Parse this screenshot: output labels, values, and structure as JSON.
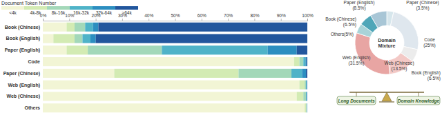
{
  "chart_data": [
    {
      "type": "bar",
      "orientation": "horizontal",
      "stacked": true,
      "legend": "top-left",
      "grid": false,
      "legend_title": "Document Token Number",
      "categories": [
        "Book (Chinese)",
        "Book (English)",
        "Paper (English)",
        "Code",
        "Paper (Chinese)",
        "Web (English)",
        "Web (Chinese)",
        "Others"
      ],
      "series": [
        {
          "name": "<4k",
          "color": "#f2f5d5",
          "values": [
            9,
            4,
            9,
            95,
            27,
            97,
            96,
            99
          ]
        },
        {
          "name": "4k-8k",
          "color": "#d3ebb3",
          "values": [
            3,
            8,
            8,
            2,
            47,
            2,
            2.5,
            0.6
          ]
        },
        {
          "name": "8k-16k",
          "color": "#a3d8b9",
          "values": [
            4,
            3,
            28,
            1.5,
            20,
            0.5,
            1,
            0.2
          ]
        },
        {
          "name": "16k-32k",
          "color": "#4fb3c8",
          "values": [
            3,
            3,
            40,
            0.8,
            4,
            0.3,
            0.3,
            0.1
          ]
        },
        {
          "name": "32k-64k",
          "color": "#2c8ec0",
          "values": [
            2,
            2,
            11,
            0.4,
            1.5,
            0.1,
            0.1,
            0.05
          ]
        },
        {
          "name": ">64k",
          "color": "#22569d",
          "values": [
            79,
            80,
            4,
            0.3,
            0.5,
            0.1,
            0.1,
            0.05
          ]
        }
      ],
      "xlim": [
        0,
        100
      ],
      "xticks": [
        {
          "value": 0,
          "label": "0%"
        },
        {
          "value": 10,
          "label": "10%"
        },
        {
          "value": 20,
          "label": "20%"
        },
        {
          "value": 30,
          "label": "30%"
        },
        {
          "value": 40,
          "label": "40%"
        },
        {
          "value": 50,
          "label": "50%"
        },
        {
          "value": 60,
          "label": "60%"
        },
        {
          "value": 70,
          "label": "70%"
        },
        {
          "value": 80,
          "label": "80%"
        },
        {
          "value": 90,
          "label": "90%"
        },
        {
          "value": 100,
          "label": "100%"
        }
      ]
    },
    {
      "type": "pie",
      "title": "Domain Mixture",
      "categories": [
        "Paper (Chinese)",
        "Code",
        "Book (English)",
        "Web (Chinese)",
        "Web (English)",
        "Others",
        "Book (Chinese)",
        "Paper (English)"
      ],
      "values": [
        3.5,
        25,
        6.5,
        13.5,
        31.5,
        5,
        6.5,
        8.5
      ],
      "value_labels": [
        "(3.5%)",
        "(25%)",
        "(6.5%)",
        "(13.5%)",
        "(31.5%)",
        "(5%)",
        "(6.5%)",
        "(8.5%)"
      ],
      "colors": [
        "#d6e6ec",
        "#dfe7ee",
        "#ececec",
        "#f3c9c6",
        "#e8a5a3",
        "#a9d3d8",
        "#4fa6b8",
        "#a8c6d6"
      ],
      "data_labels": true,
      "annotations": [
        "Long Documents",
        "Domain Knowledge"
      ]
    }
  ]
}
